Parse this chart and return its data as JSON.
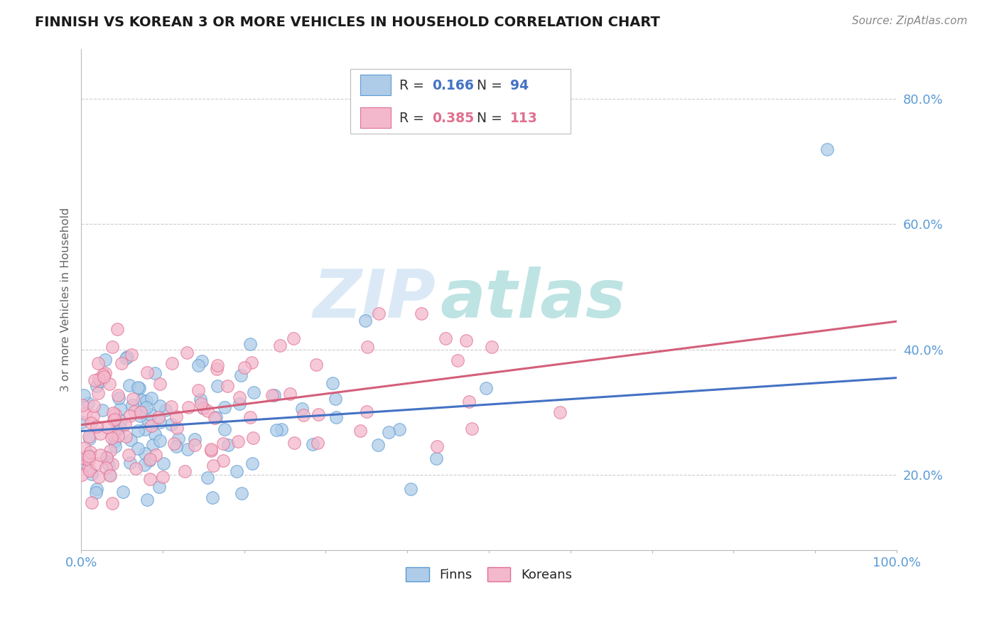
{
  "title": "FINNISH VS KOREAN 3 OR MORE VEHICLES IN HOUSEHOLD CORRELATION CHART",
  "source_text": "Source: ZipAtlas.com",
  "ylabel": "3 or more Vehicles in Household",
  "xlim": [
    0.0,
    1.0
  ],
  "ylim": [
    0.08,
    0.88
  ],
  "ytick_vals": [
    0.2,
    0.4,
    0.6,
    0.8
  ],
  "ytick_labels": [
    "20.0%",
    "40.0%",
    "60.0%",
    "80.0%"
  ],
  "xtick_vals": [
    0.0,
    0.1,
    0.2,
    0.3,
    0.4,
    0.5,
    0.6,
    0.7,
    0.8,
    0.9,
    1.0
  ],
  "xtick_labels": [
    "0.0%",
    "",
    "",
    "",
    "",
    "",
    "",
    "",
    "",
    "",
    "100.0%"
  ],
  "finn_color": "#aecce8",
  "finn_edge_color": "#5b9bd5",
  "korean_color": "#f4b8cc",
  "korean_edge_color": "#e07090",
  "finn_R": 0.166,
  "finn_N": 94,
  "korean_R": 0.385,
  "korean_N": 113,
  "finn_line_color": "#4472c4",
  "korean_line_color": "#d45f7a",
  "watermark": "ZIPatlas",
  "watermark_blue": "#b8d4ee",
  "watermark_teal": "#7ec8c8",
  "finn_label": "Finns",
  "korean_label": "Koreans",
  "background_color": "#ffffff",
  "grid_color": "#cccccc",
  "title_color": "#1a1a1a",
  "source_color": "#888888",
  "axis_label_color": "#666666",
  "tick_color": "#5b9bd5",
  "finn_line_intercept": 0.27,
  "finn_line_slope": 0.085,
  "korean_line_intercept": 0.28,
  "korean_line_slope": 0.165
}
